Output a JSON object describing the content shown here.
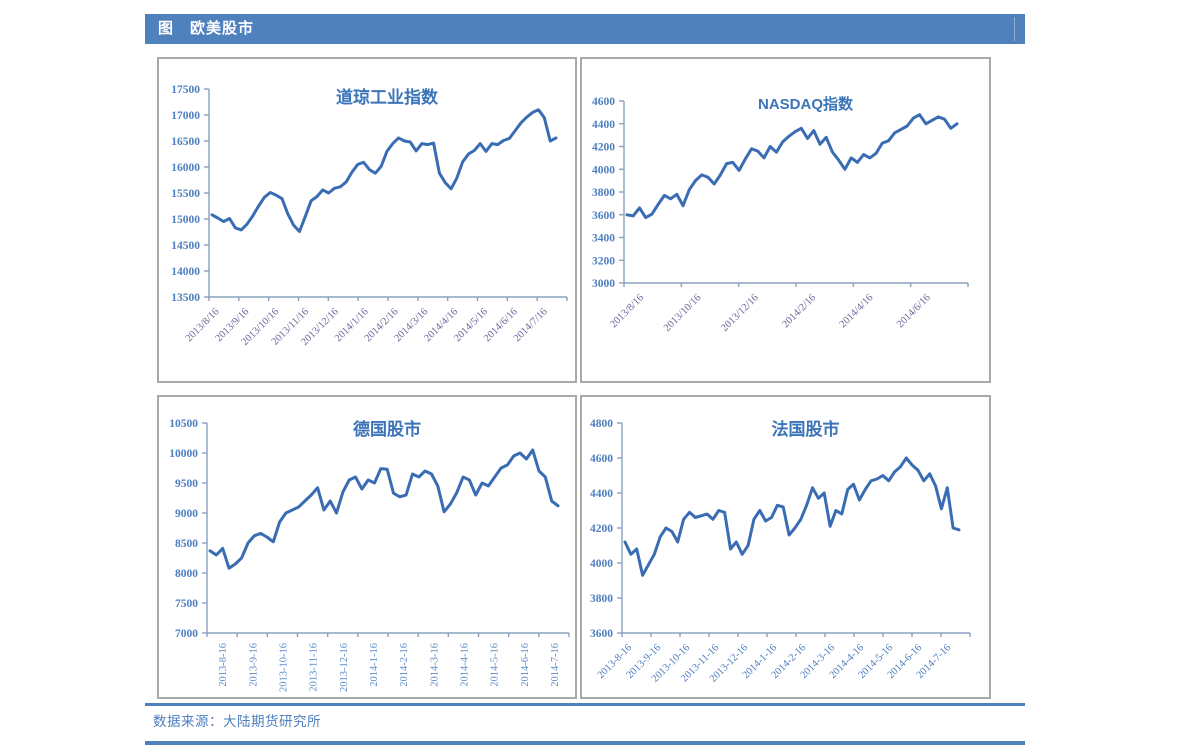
{
  "header": {
    "title": "图　欧美股市"
  },
  "footer": {
    "source": "数据来源：大陆期货研究所"
  },
  "colors": {
    "header_bg": "#4f81bd",
    "header_text": "#ffffff",
    "accent_line": "#4f81bd",
    "panel_border": "#a9a9a9",
    "series_line": "#3a6cb3",
    "axis": "#8aa0bf",
    "ytick_label": "#4d7ebf",
    "title_text": "#3c74b8",
    "footer_text": "#4d7ebf"
  },
  "chart_data": [
    {
      "type": "line",
      "title": "道琼工业指数",
      "ylim": [
        13500,
        17500
      ],
      "yticks": [
        13500,
        14000,
        14500,
        15000,
        15500,
        16000,
        16500,
        17000,
        17500
      ],
      "x_labels": [
        "2013/8/16",
        "2013/9/16",
        "2013/10/16",
        "2013/11/16",
        "2013/12/16",
        "2014/1/16",
        "2014/2/16",
        "2014/3/16",
        "2014/4/16",
        "2014/5/16",
        "2014/6/16",
        "2014/7/16"
      ],
      "x_label_rotation": 45,
      "x_label_color": "#69699c",
      "x_tick_count": 12,
      "grid": false,
      "legend": "none",
      "values": [
        15080,
        15020,
        14950,
        15010,
        14830,
        14790,
        14900,
        15060,
        15250,
        15420,
        15510,
        15460,
        15390,
        15100,
        14880,
        14760,
        15050,
        15350,
        15430,
        15560,
        15500,
        15590,
        15620,
        15710,
        15900,
        16050,
        16090,
        15950,
        15880,
        16010,
        16300,
        16450,
        16560,
        16500,
        16480,
        16310,
        16450,
        16430,
        16460,
        15880,
        15700,
        15580,
        15790,
        16100,
        16250,
        16320,
        16450,
        16300,
        16450,
        16430,
        16510,
        16550,
        16700,
        16850,
        16960,
        17050,
        17100,
        16950,
        16500,
        16560
      ]
    },
    {
      "type": "line",
      "title": "NASDAQ指数",
      "ylim": [
        3000,
        4600
      ],
      "yticks": [
        3000,
        3200,
        3400,
        3600,
        3800,
        4000,
        4200,
        4400,
        4600
      ],
      "x_labels": [
        "2013/8/16",
        "2013/10/16",
        "2013/12/16",
        "2014/2/16",
        "2014/4/16",
        "2014/6/16"
      ],
      "x_label_rotation": 45,
      "x_label_color": "#69699c",
      "x_tick_count": 6,
      "grid": false,
      "legend": "none",
      "values": [
        3600,
        3590,
        3660,
        3575,
        3605,
        3690,
        3770,
        3740,
        3780,
        3680,
        3820,
        3900,
        3950,
        3930,
        3870,
        3950,
        4050,
        4060,
        3990,
        4090,
        4180,
        4160,
        4100,
        4200,
        4150,
        4240,
        4290,
        4330,
        4360,
        4270,
        4340,
        4220,
        4280,
        4150,
        4080,
        4000,
        4100,
        4060,
        4130,
        4100,
        4140,
        4230,
        4250,
        4320,
        4350,
        4380,
        4450,
        4480,
        4400,
        4430,
        4460,
        4440,
        4360,
        4400
      ]
    },
    {
      "type": "line",
      "title": "德国股市",
      "ylim": [
        7000,
        10500
      ],
      "yticks": [
        7000,
        7500,
        8000,
        8500,
        9000,
        9500,
        10000,
        10500
      ],
      "x_labels": [
        "2013-8-16",
        "2013-9-16",
        "2013-10-16",
        "2013-11-16",
        "2013-12-16",
        "2014-1-16",
        "2014-2-16",
        "2014-3-16",
        "2014-4-16",
        "2014-5-16",
        "2014-6-16",
        "2014-7-16"
      ],
      "x_label_rotation": 90,
      "x_label_color": "#5b8cc8",
      "x_tick_count": 12,
      "grid": false,
      "legend": "none",
      "values": [
        8370,
        8300,
        8410,
        8080,
        8150,
        8250,
        8500,
        8620,
        8660,
        8600,
        8520,
        8850,
        9000,
        9050,
        9100,
        9200,
        9300,
        9420,
        9050,
        9200,
        9000,
        9350,
        9550,
        9600,
        9400,
        9550,
        9500,
        9740,
        9730,
        9330,
        9270,
        9300,
        9650,
        9600,
        9700,
        9650,
        9450,
        9020,
        9150,
        9340,
        9600,
        9550,
        9300,
        9500,
        9450,
        9600,
        9750,
        9800,
        9950,
        10000,
        9900,
        10050,
        9700,
        9600,
        9200,
        9120
      ]
    },
    {
      "type": "line",
      "title": "法国股市",
      "ylim": [
        3600,
        4800
      ],
      "yticks": [
        3600,
        3800,
        4000,
        4200,
        4400,
        4600,
        4800
      ],
      "x_labels": [
        "2013-8-16",
        "2013-9-16",
        "2013-10-16",
        "2013-11-16",
        "2013-12-16",
        "2014-1-16",
        "2014-2-16",
        "2014-3-16",
        "2014-4-16",
        "2014-5-16",
        "2014-6-16",
        "2014-7-16"
      ],
      "x_label_rotation": 45,
      "x_label_color": "#4d7ebf",
      "x_tick_count": 12,
      "grid": false,
      "legend": "none",
      "values": [
        4120,
        4050,
        4080,
        3930,
        3990,
        4050,
        4150,
        4200,
        4180,
        4120,
        4250,
        4290,
        4260,
        4270,
        4280,
        4250,
        4300,
        4290,
        4080,
        4120,
        4050,
        4100,
        4250,
        4300,
        4240,
        4260,
        4330,
        4320,
        4160,
        4200,
        4250,
        4330,
        4430,
        4370,
        4400,
        4210,
        4300,
        4280,
        4420,
        4450,
        4360,
        4420,
        4470,
        4480,
        4500,
        4470,
        4520,
        4550,
        4600,
        4560,
        4530,
        4470,
        4510,
        4440,
        4310,
        4430,
        4200,
        4190
      ]
    }
  ]
}
